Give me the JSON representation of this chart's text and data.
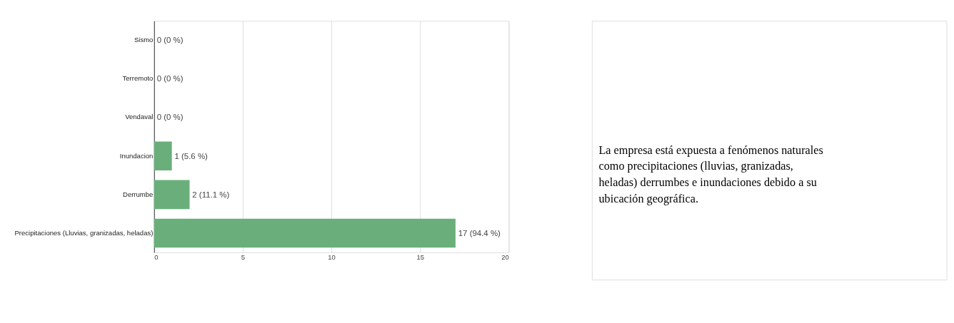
{
  "chart_data": {
    "type": "bar",
    "orientation": "horizontal",
    "categories": [
      "Sismo",
      "Terremoto",
      "Vendaval",
      "Inundacion",
      "Derrumbe",
      "Precipitaciones (Lluvias, granizadas, heladas)"
    ],
    "values": [
      0,
      0,
      0,
      1,
      2,
      17
    ],
    "value_labels": [
      "0 (0 %)",
      "0 (0 %)",
      "0 (0 %)",
      "1 (5.6 %)",
      "2 (11.1 %)",
      "17 (94.4 %)"
    ],
    "color": "#6aaf7b",
    "xlim": [
      0,
      20
    ],
    "xticks": [
      0,
      5,
      10,
      15,
      20
    ],
    "grid": "x",
    "annotations": [
      "La empresa está expuesta a fenómenos naturales como precipitaciones (lluvias, granizadas, heladas) derrumbes e inundaciones debido a su ubicación geográfica."
    ]
  }
}
